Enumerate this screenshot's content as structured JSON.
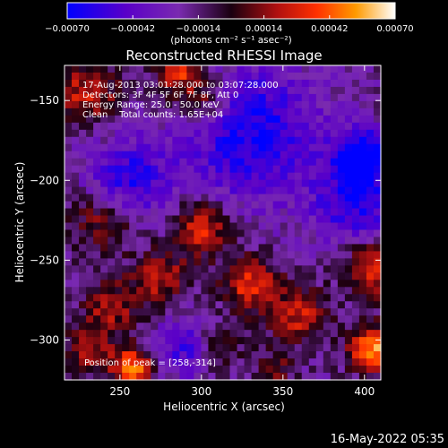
{
  "chart_data": {
    "type": "heatmap",
    "title": "Reconstructed RHESSI Image",
    "xlabel": "Heliocentric X (arcsec)",
    "ylabel": "Heliocentric Y (arcsec)",
    "xlim": [
      216,
      410
    ],
    "ylim": [
      -325,
      -128
    ],
    "x_ticks": [
      250,
      300,
      350,
      400
    ],
    "y_ticks": [
      -150,
      -200,
      -250,
      -300
    ],
    "x_tick_labels": [
      "250",
      "300",
      "350",
      "400"
    ],
    "y_tick_labels": [
      "−150",
      "−200",
      "−250",
      "−300"
    ],
    "colorbar": {
      "range": [
        -0.0007,
        0.0007
      ],
      "ticks": [
        -0.0007,
        -0.00042,
        -0.00014,
        0.00014,
        0.00042,
        0.0007
      ],
      "tick_labels": [
        "−0.00070",
        "−0.00042",
        "−0.00014",
        "0.00014",
        "0.00042",
        "0.00070"
      ],
      "units": "(photons cm⁻² s⁻¹ asec⁻²)",
      "colors": [
        "#0000ff",
        "#5a00c8",
        "#7a2ab0",
        "#1a0010",
        "#b01010",
        "#ff3000",
        "#ff9a00",
        "#ffffff"
      ]
    },
    "annotations": [
      "17-Aug-2013 03:01:28.000 to 03:07:28.000",
      "Detectors: 3F 4F 5F 6F 7F 8F, Att 0",
      "Energy Range: 25.0 - 50.0 keV",
      "Clean    Total counts: 1.65E+04"
    ],
    "peak_label": "Position of peak = [258,-314]",
    "peak": [
      258,
      -314
    ],
    "sources": [
      {
        "x": 258,
        "y": -318,
        "sigma": 9,
        "amp": 1.0
      },
      {
        "x": 405,
        "y": -305,
        "sigma": 10,
        "amp": 1.0
      },
      {
        "x": 405,
        "y": -255,
        "sigma": 12,
        "amp": 0.75
      },
      {
        "x": 300,
        "y": -230,
        "sigma": 12,
        "amp": 0.7
      },
      {
        "x": 330,
        "y": -265,
        "sigma": 12,
        "amp": 0.7
      },
      {
        "x": 360,
        "y": -285,
        "sigma": 12,
        "amp": 0.6
      },
      {
        "x": 275,
        "y": -262,
        "sigma": 12,
        "amp": 0.55
      },
      {
        "x": 245,
        "y": -280,
        "sigma": 12,
        "amp": 0.5
      },
      {
        "x": 240,
        "y": -225,
        "sigma": 14,
        "amp": 0.5
      },
      {
        "x": 300,
        "y": -150,
        "sigma": 13,
        "amp": 0.6
      },
      {
        "x": 285,
        "y": -130,
        "sigma": 10,
        "amp": 0.7
      },
      {
        "x": 230,
        "y": -145,
        "sigma": 14,
        "amp": 0.6
      },
      {
        "x": 230,
        "y": -305,
        "sigma": 10,
        "amp": 0.55
      },
      {
        "x": 310,
        "y": -305,
        "sigma": 10,
        "amp": 0.45
      },
      {
        "x": 345,
        "y": -318,
        "sigma": 8,
        "amp": 0.35
      }
    ],
    "negative_regions": [
      {
        "x": 330,
        "y": -170,
        "sigma": 30,
        "amp": -0.7
      },
      {
        "x": 400,
        "y": -185,
        "sigma": 12,
        "amp": -0.9
      },
      {
        "x": 255,
        "y": -200,
        "sigma": 18,
        "amp": -0.6
      },
      {
        "x": 395,
        "y": -215,
        "sigma": 18,
        "amp": -0.6
      },
      {
        "x": 290,
        "y": -305,
        "sigma": 14,
        "amp": -0.5
      }
    ]
  },
  "footer_date": "16-May-2022 05:35"
}
